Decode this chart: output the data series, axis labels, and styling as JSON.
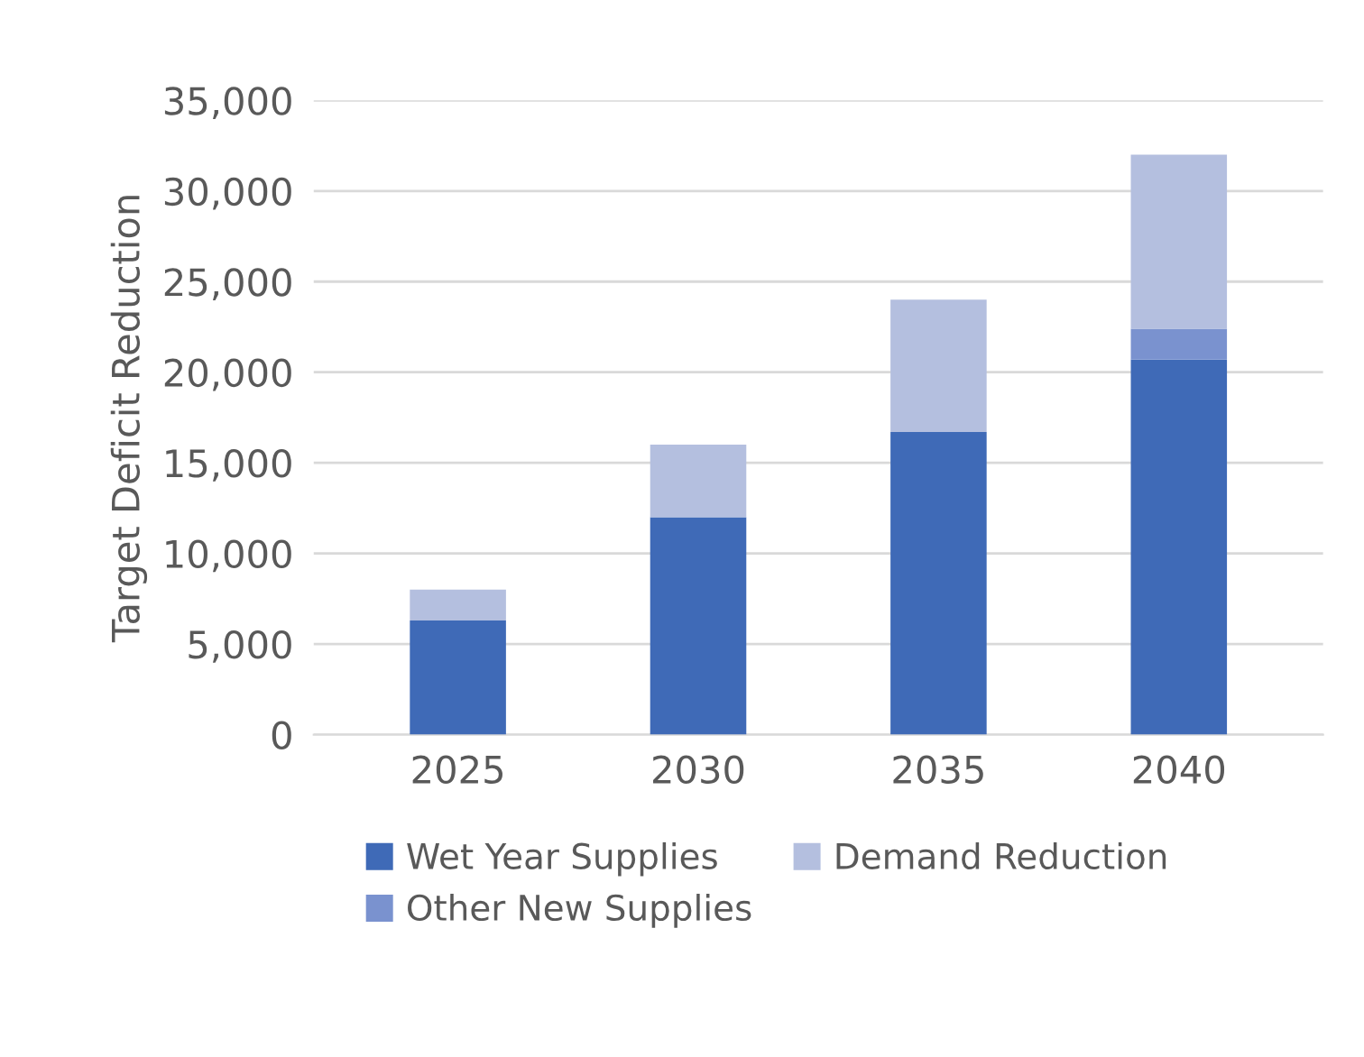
{
  "chart_data": {
    "type": "bar",
    "stacked": true,
    "ylabel": "Target Deficit Reduction",
    "categories": [
      "2025",
      "2030",
      "2035",
      "2040"
    ],
    "series": [
      {
        "name": "Wet Year Supplies",
        "color": "#3f6ab7",
        "values": [
          6300,
          12000,
          16700,
          20700
        ]
      },
      {
        "name": "Other New Supplies",
        "color": "#7a92cf",
        "values": [
          0,
          0,
          0,
          1700
        ]
      },
      {
        "name": "Demand Reduction",
        "color": "#b4bfdf",
        "values": [
          1700,
          4000,
          7300,
          9600
        ]
      }
    ],
    "ylim": [
      0,
      35000
    ],
    "yticks": [
      {
        "value": 0,
        "label": "0"
      },
      {
        "value": 5000,
        "label": "5,000"
      },
      {
        "value": 10000,
        "label": "10,000"
      },
      {
        "value": 15000,
        "label": "15,000"
      },
      {
        "value": 20000,
        "label": "20,000"
      },
      {
        "value": 25000,
        "label": "25,000"
      },
      {
        "value": 30000,
        "label": "30,000"
      },
      {
        "value": 35000,
        "label": "35,000"
      }
    ],
    "grid": "y",
    "legend": "bottom"
  }
}
